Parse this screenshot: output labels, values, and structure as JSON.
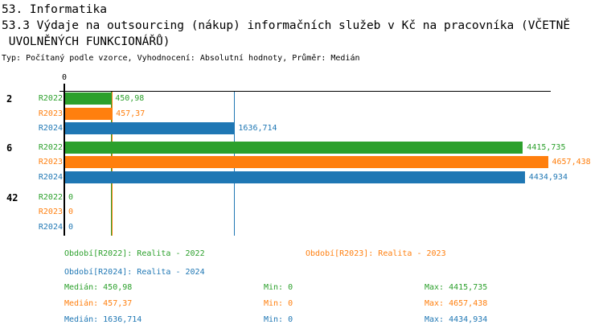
{
  "header": {
    "title_line1": "53. Informatika",
    "title_line2": "53.3 Výdaje na outsourcing (nákup) informačních služeb v Kč na pracovníka (VČETNĚ",
    "title_line3": " UVOLNĚNÝCH FUNKCIONÁŘŮ)",
    "meta_line": "Typ: Počítaný podle vzorce, Vyhodnocení: Absolutní hodnoty, Průměr: Medián"
  },
  "chart_data": {
    "type": "bar",
    "orientation": "horizontal",
    "title": "53.3 Výdaje na outsourcing (nákup) informačních služeb v Kč na pracovníka (VČETNĚ UVOLNĚNÝCH FUNKCIONÁŘŮ)",
    "axis": {
      "zero_tick_label": "0",
      "max": 4692,
      "grid": false
    },
    "series_colors": {
      "R2022": "#2ca02c",
      "R2023": "#ff7f0e",
      "R2024": "#1f77b4"
    },
    "categories": [
      "2",
      "6",
      "42"
    ],
    "groups": [
      {
        "category": "2",
        "bars": [
          {
            "series": "R2022",
            "value": 450.98,
            "label": "450,98"
          },
          {
            "series": "R2023",
            "value": 457.37,
            "label": "457,37"
          },
          {
            "series": "R2024",
            "value": 1636.714,
            "label": "1636,714"
          }
        ]
      },
      {
        "category": "6",
        "bars": [
          {
            "series": "R2022",
            "value": 4415.735,
            "label": "4415,735"
          },
          {
            "series": "R2023",
            "value": 4657.438,
            "label": "4657,438"
          },
          {
            "series": "R2024",
            "value": 4434.934,
            "label": "4434,934"
          }
        ]
      },
      {
        "category": "42",
        "bars": [
          {
            "series": "R2022",
            "value": 0,
            "label": "0"
          },
          {
            "series": "R2023",
            "value": 0,
            "label": "0"
          },
          {
            "series": "R2024",
            "value": 0,
            "label": "0"
          }
        ]
      }
    ],
    "median_lines": [
      {
        "series": "R2022",
        "value": 450.98
      },
      {
        "series": "R2023",
        "value": 457.37
      },
      {
        "series": "R2024",
        "value": 1636.714
      }
    ],
    "legend": [
      {
        "series": "R2022",
        "label": "Období[R2022]: Realita - 2022",
        "row": 0,
        "col": 0
      },
      {
        "series": "R2023",
        "label": "Období[R2023]: Realita - 2023",
        "row": 0,
        "col": 1
      },
      {
        "series": "R2024",
        "label": "Období[R2024]: Realita - 2024",
        "row": 1,
        "col": 0
      }
    ],
    "stats": [
      {
        "series": "R2022",
        "median": "Medián: 450,98",
        "min": "Min: 0",
        "max": "Max: 4415,735"
      },
      {
        "series": "R2023",
        "median": "Medián: 457,37",
        "min": "Min: 0",
        "max": "Max: 4657,438"
      },
      {
        "series": "R2024",
        "median": "Medián: 1636,714",
        "min": "Min: 0",
        "max": "Max: 4434,934"
      }
    ]
  }
}
